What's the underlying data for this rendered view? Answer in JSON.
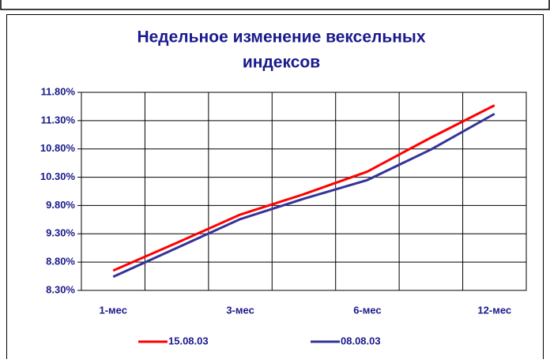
{
  "chart_data": {
    "type": "line",
    "title": [
      "Недельное изменение вексельных",
      "индексов"
    ],
    "categories": [
      "1-мес",
      null,
      "3-мес",
      null,
      "6-мес",
      null,
      "12-мес"
    ],
    "series": [
      {
        "name": "15.08.03",
        "color": "#ff0000",
        "values": [
          8.65,
          9.14,
          9.64,
          10.0,
          10.4,
          11.0,
          11.57
        ]
      },
      {
        "name": "08.08.03",
        "color": "#333399",
        "values": [
          8.54,
          9.05,
          9.56,
          9.92,
          10.25,
          10.79,
          11.42
        ]
      }
    ],
    "ylim": [
      8.3,
      11.8
    ],
    "yticks": [
      {
        "value": 8.3,
        "label": "8.30%"
      },
      {
        "value": 8.8,
        "label": "8.80%"
      },
      {
        "value": 9.3,
        "label": "9.30%"
      },
      {
        "value": 9.8,
        "label": "9.80%"
      },
      {
        "value": 10.3,
        "label": "10.30%"
      },
      {
        "value": 10.8,
        "label": "10.80%"
      },
      {
        "value": 11.3,
        "label": "11.30%"
      },
      {
        "value": 11.8,
        "label": "11.80%"
      }
    ],
    "grid": true
  }
}
